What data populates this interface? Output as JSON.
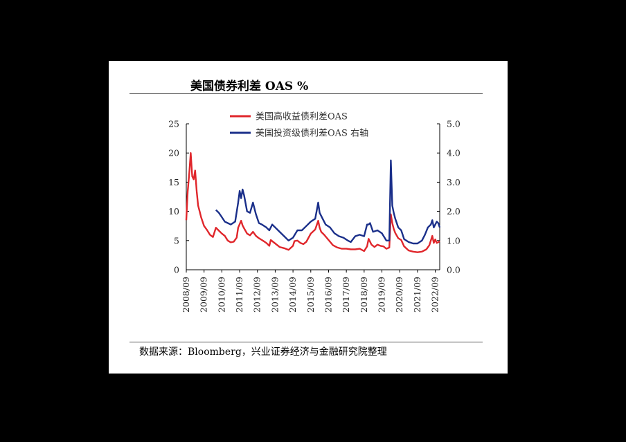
{
  "page": {
    "title": "美国债券利差 OAS %",
    "source": "数据来源：Bloomberg，兴业证券经济与金融研究院整理"
  },
  "chart_data": {
    "type": "line",
    "title": "美国债券利差 OAS %",
    "x_range": [
      "2008-09",
      "2022-12"
    ],
    "x_ticks": [
      "2008/09",
      "2009/09",
      "2010/09",
      "2011/09",
      "2012/09",
      "2013/09",
      "2014/09",
      "2015/09",
      "2016/09",
      "2017/09",
      "2018/09",
      "2019/09",
      "2020/09",
      "2021/09",
      "2022/09"
    ],
    "y_left": {
      "lim": [
        0,
        25
      ],
      "ticks": [
        "0",
        "5",
        "10",
        "15",
        "20",
        "25"
      ]
    },
    "y_right": {
      "lim": [
        0,
        5
      ],
      "ticks": [
        "0.0",
        "1.0",
        "2.0",
        "3.0",
        "4.0",
        "5.0"
      ]
    },
    "grid": false,
    "legend": "top-center",
    "series": [
      {
        "name": "美国高收益债利差OAS",
        "axis": "left",
        "color": "#e0262b",
        "points": [
          [
            "2008-09",
            8.5
          ],
          [
            "2008-10",
            13.5
          ],
          [
            "2008-11",
            16.5
          ],
          [
            "2008-12",
            20.0
          ],
          [
            "2009-01",
            16.0
          ],
          [
            "2009-02",
            15.5
          ],
          [
            "2009-03",
            17.0
          ],
          [
            "2009-04",
            13.5
          ],
          [
            "2009-05",
            11.0
          ],
          [
            "2009-06",
            10.0
          ],
          [
            "2009-07",
            9.0
          ],
          [
            "2009-09",
            7.5
          ],
          [
            "2009-11",
            6.8
          ],
          [
            "2010-01",
            6.0
          ],
          [
            "2010-03",
            5.6
          ],
          [
            "2010-05",
            7.2
          ],
          [
            "2010-07",
            6.7
          ],
          [
            "2010-09",
            6.2
          ],
          [
            "2010-11",
            5.8
          ],
          [
            "2011-01",
            5.0
          ],
          [
            "2011-03",
            4.7
          ],
          [
            "2011-05",
            4.8
          ],
          [
            "2011-07",
            5.5
          ],
          [
            "2011-08",
            7.2
          ],
          [
            "2011-10",
            8.4
          ],
          [
            "2011-11",
            7.6
          ],
          [
            "2011-12",
            7.1
          ],
          [
            "2012-02",
            6.2
          ],
          [
            "2012-04",
            5.9
          ],
          [
            "2012-06",
            6.5
          ],
          [
            "2012-08",
            5.8
          ],
          [
            "2012-10",
            5.4
          ],
          [
            "2012-12",
            5.1
          ],
          [
            "2013-03",
            4.6
          ],
          [
            "2013-05",
            4.1
          ],
          [
            "2013-06",
            5.1
          ],
          [
            "2013-09",
            4.5
          ],
          [
            "2013-12",
            3.9
          ],
          [
            "2014-03",
            3.7
          ],
          [
            "2014-06",
            3.4
          ],
          [
            "2014-09",
            4.1
          ],
          [
            "2014-10",
            4.9
          ],
          [
            "2014-12",
            5.0
          ],
          [
            "2015-02",
            4.6
          ],
          [
            "2015-04",
            4.4
          ],
          [
            "2015-06",
            4.8
          ],
          [
            "2015-09",
            6.2
          ],
          [
            "2015-12",
            6.9
          ],
          [
            "2016-02",
            8.4
          ],
          [
            "2016-03",
            7.2
          ],
          [
            "2016-04",
            6.5
          ],
          [
            "2016-06",
            6.0
          ],
          [
            "2016-09",
            5.1
          ],
          [
            "2016-12",
            4.2
          ],
          [
            "2017-03",
            3.8
          ],
          [
            "2017-06",
            3.6
          ],
          [
            "2017-09",
            3.6
          ],
          [
            "2017-12",
            3.5
          ],
          [
            "2018-03",
            3.5
          ],
          [
            "2018-06",
            3.6
          ],
          [
            "2018-09",
            3.2
          ],
          [
            "2018-11",
            4.0
          ],
          [
            "2018-12",
            5.3
          ],
          [
            "2019-02",
            4.3
          ],
          [
            "2019-04",
            3.9
          ],
          [
            "2019-06",
            4.3
          ],
          [
            "2019-08",
            4.1
          ],
          [
            "2019-10",
            4.0
          ],
          [
            "2019-12",
            3.6
          ],
          [
            "2020-02",
            3.8
          ],
          [
            "2020-03",
            9.5
          ],
          [
            "2020-04",
            8.0
          ],
          [
            "2020-05",
            7.0
          ],
          [
            "2020-06",
            6.3
          ],
          [
            "2020-08",
            5.4
          ],
          [
            "2020-10",
            5.1
          ],
          [
            "2020-12",
            4.0
          ],
          [
            "2021-03",
            3.3
          ],
          [
            "2021-06",
            3.1
          ],
          [
            "2021-09",
            3.0
          ],
          [
            "2021-12",
            3.1
          ],
          [
            "2022-03",
            3.5
          ],
          [
            "2022-05",
            4.2
          ],
          [
            "2022-07",
            5.8
          ],
          [
            "2022-08",
            4.6
          ],
          [
            "2022-09",
            5.2
          ],
          [
            "2022-10",
            4.6
          ],
          [
            "2022-11",
            4.7
          ],
          [
            "2022-12",
            4.9
          ]
        ]
      },
      {
        "name": "美国投资级债利差OAS 右轴",
        "axis": "right",
        "color": "#1a2f8a",
        "points": [
          [
            "2010-05",
            2.05
          ],
          [
            "2010-07",
            1.95
          ],
          [
            "2010-09",
            1.8
          ],
          [
            "2010-11",
            1.65
          ],
          [
            "2011-01",
            1.6
          ],
          [
            "2011-03",
            1.55
          ],
          [
            "2011-06",
            1.65
          ],
          [
            "2011-08",
            2.3
          ],
          [
            "2011-09",
            2.7
          ],
          [
            "2011-10",
            2.45
          ],
          [
            "2011-11",
            2.75
          ],
          [
            "2011-12",
            2.55
          ],
          [
            "2012-02",
            2.0
          ],
          [
            "2012-04",
            1.95
          ],
          [
            "2012-06",
            2.3
          ],
          [
            "2012-08",
            1.9
          ],
          [
            "2012-10",
            1.6
          ],
          [
            "2012-12",
            1.55
          ],
          [
            "2013-03",
            1.45
          ],
          [
            "2013-05",
            1.35
          ],
          [
            "2013-07",
            1.55
          ],
          [
            "2013-09",
            1.45
          ],
          [
            "2013-12",
            1.3
          ],
          [
            "2014-03",
            1.15
          ],
          [
            "2014-06",
            1.0
          ],
          [
            "2014-09",
            1.1
          ],
          [
            "2014-12",
            1.35
          ],
          [
            "2015-03",
            1.35
          ],
          [
            "2015-06",
            1.5
          ],
          [
            "2015-09",
            1.65
          ],
          [
            "2015-12",
            1.75
          ],
          [
            "2016-02",
            2.3
          ],
          [
            "2016-03",
            1.95
          ],
          [
            "2016-05",
            1.75
          ],
          [
            "2016-07",
            1.55
          ],
          [
            "2016-10",
            1.45
          ],
          [
            "2017-01",
            1.25
          ],
          [
            "2017-04",
            1.15
          ],
          [
            "2017-07",
            1.1
          ],
          [
            "2017-10",
            1.0
          ],
          [
            "2017-12",
            0.95
          ],
          [
            "2018-03",
            1.15
          ],
          [
            "2018-06",
            1.2
          ],
          [
            "2018-09",
            1.15
          ],
          [
            "2018-11",
            1.55
          ],
          [
            "2018-12",
            1.55
          ],
          [
            "2019-01",
            1.6
          ],
          [
            "2019-03",
            1.3
          ],
          [
            "2019-06",
            1.35
          ],
          [
            "2019-09",
            1.25
          ],
          [
            "2019-12",
            1.0
          ],
          [
            "2020-02",
            1.0
          ],
          [
            "2020-03",
            3.75
          ],
          [
            "2020-04",
            2.2
          ],
          [
            "2020-05",
            1.95
          ],
          [
            "2020-06",
            1.75
          ],
          [
            "2020-08",
            1.45
          ],
          [
            "2020-10",
            1.35
          ],
          [
            "2020-12",
            1.05
          ],
          [
            "2021-03",
            0.95
          ],
          [
            "2021-06",
            0.9
          ],
          [
            "2021-09",
            0.9
          ],
          [
            "2021-12",
            1.0
          ],
          [
            "2022-02",
            1.2
          ],
          [
            "2022-04",
            1.45
          ],
          [
            "2022-06",
            1.55
          ],
          [
            "2022-07",
            1.7
          ],
          [
            "2022-08",
            1.45
          ],
          [
            "2022-10",
            1.65
          ],
          [
            "2022-11",
            1.6
          ],
          [
            "2022-12",
            1.45
          ]
        ]
      }
    ]
  }
}
